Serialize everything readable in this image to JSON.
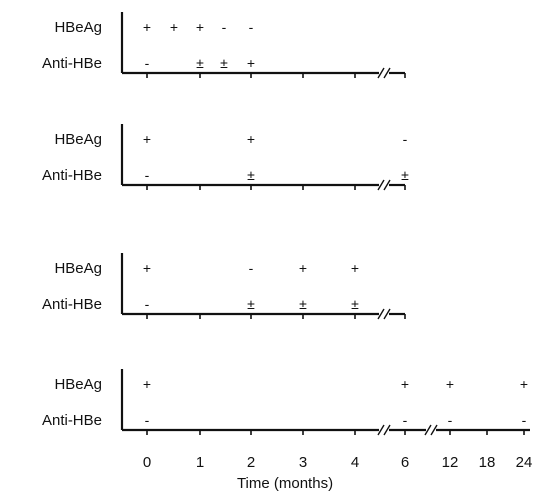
{
  "panels": [
    {
      "row_labels": [
        "HBeAg",
        "Anti-HBe"
      ],
      "break_after_4": true,
      "break_after_6": false,
      "hbeag": [
        {
          "t": "0",
          "s": "+"
        },
        {
          "t": "0.5",
          "s": "+"
        },
        {
          "t": "1",
          "s": "+"
        },
        {
          "t": "1.5",
          "s": "-"
        },
        {
          "t": "2",
          "s": "-"
        }
      ],
      "antihbe": [
        {
          "t": "0",
          "s": "-"
        },
        {
          "t": "1",
          "s": "±"
        },
        {
          "t": "1.5",
          "s": "±"
        },
        {
          "t": "2",
          "s": "+"
        }
      ]
    },
    {
      "row_labels": [
        "HBeAg",
        "Anti-HBe"
      ],
      "break_after_4": true,
      "break_after_6": false,
      "hbeag": [
        {
          "t": "0",
          "s": "+"
        },
        {
          "t": "2",
          "s": "+"
        },
        {
          "t": "6",
          "s": "-"
        }
      ],
      "antihbe": [
        {
          "t": "0",
          "s": "-"
        },
        {
          "t": "2",
          "s": "±"
        },
        {
          "t": "6",
          "s": "±"
        }
      ]
    },
    {
      "row_labels": [
        "HBeAg",
        "Anti-HBe"
      ],
      "break_after_4": true,
      "break_after_6": false,
      "hbeag": [
        {
          "t": "0",
          "s": "+"
        },
        {
          "t": "2",
          "s": "-"
        },
        {
          "t": "3",
          "s": "+"
        },
        {
          "t": "4",
          "s": "+"
        }
      ],
      "antihbe": [
        {
          "t": "0",
          "s": "-"
        },
        {
          "t": "2",
          "s": "±"
        },
        {
          "t": "3",
          "s": "±"
        },
        {
          "t": "4",
          "s": "±"
        }
      ]
    },
    {
      "row_labels": [
        "HBeAg",
        "Anti-HBe"
      ],
      "break_after_4": true,
      "break_after_6": true,
      "hbeag": [
        {
          "t": "0",
          "s": "+"
        },
        {
          "t": "6",
          "s": "+"
        },
        {
          "t": "12",
          "s": "+"
        },
        {
          "t": "24",
          "s": "+"
        }
      ],
      "antihbe": [
        {
          "t": "0",
          "s": "-"
        },
        {
          "t": "6",
          "s": "-"
        },
        {
          "t": "12",
          "s": "-"
        },
        {
          "t": "24",
          "s": "-"
        }
      ]
    }
  ],
  "axis": {
    "tick_labels": [
      "0",
      "1",
      "2",
      "3",
      "4",
      "6",
      "12",
      "18",
      "24"
    ],
    "xlabel": "Time (months)"
  }
}
